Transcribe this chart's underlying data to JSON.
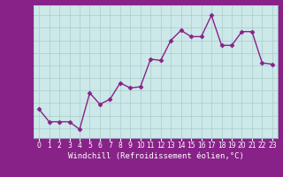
{
  "x": [
    0,
    1,
    2,
    3,
    4,
    5,
    6,
    7,
    8,
    9,
    10,
    11,
    12,
    13,
    14,
    15,
    16,
    17,
    18,
    19,
    20,
    21,
    22,
    23
  ],
  "y": [
    -0.5,
    -1.5,
    -1.5,
    -1.5,
    -2.1,
    0.8,
    -0.1,
    0.3,
    1.6,
    1.2,
    1.3,
    3.5,
    3.4,
    5.0,
    5.8,
    5.3,
    5.3,
    7.0,
    4.6,
    4.6,
    5.7,
    5.7,
    3.2,
    3.1
  ],
  "line_color": "#882288",
  "bg_color": "#cce8e8",
  "grid_color": "#aacccc",
  "xlabel": "Windchill (Refroidissement éolien,°C)",
  "ylim": [
    -2.8,
    7.8
  ],
  "xlim": [
    -0.5,
    23.5
  ],
  "yticks": [
    -2,
    -1,
    0,
    1,
    2,
    3,
    4,
    5,
    6,
    7
  ],
  "xticks": [
    0,
    1,
    2,
    3,
    4,
    5,
    6,
    7,
    8,
    9,
    10,
    11,
    12,
    13,
    14,
    15,
    16,
    17,
    18,
    19,
    20,
    21,
    22,
    23
  ],
  "marker": "D",
  "markersize": 2.5,
  "linewidth": 1.0,
  "xlabel_fontsize": 6.5,
  "tick_fontsize": 5.5,
  "label_color": "#882288",
  "xlabel_color": "#ffffff",
  "xtick_color": "#ffffff",
  "fig_bg_color": "#882288"
}
